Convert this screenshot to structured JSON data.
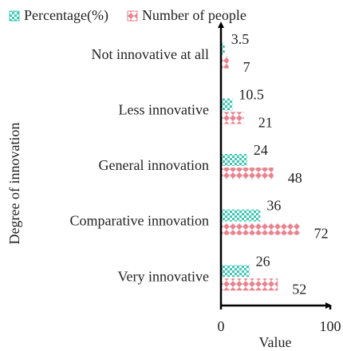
{
  "chart_data": {
    "type": "bar",
    "orientation": "horizontal",
    "x_label": "Value",
    "y_label": "Degree of innovation",
    "categories": [
      "Not innovative at all",
      "Less innovative",
      "General innovation",
      "Comparative innovation",
      "Very innovative"
    ],
    "series": [
      {
        "name": "Percentage(%)",
        "color": "#3cc8b4",
        "values": [
          3.5,
          10.5,
          24,
          36,
          26
        ]
      },
      {
        "name": "Number of people",
        "color": "#e8848f",
        "values": [
          7,
          21,
          48,
          72,
          52
        ]
      }
    ],
    "xlim": [
      0,
      100
    ],
    "xticks": [
      0,
      100
    ],
    "legend": "top"
  }
}
